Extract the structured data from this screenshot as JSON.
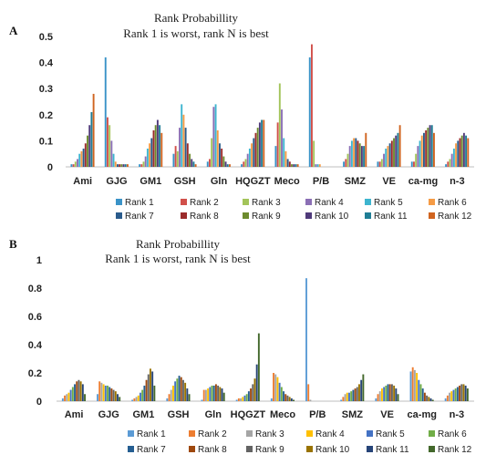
{
  "chart_data": [
    {
      "panel_label": "A",
      "type": "bar",
      "title": "Rank Probabillity",
      "subtitle": "Rank 1 is worst, rank N is best",
      "ylim": [
        0,
        0.5
      ],
      "yticks": [
        "0",
        "0.1",
        "0.2",
        "0.3",
        "0.4",
        "0.5"
      ],
      "grid": false,
      "legend_position": "bottom",
      "categories": [
        "Ami",
        "GJG",
        "GM1",
        "GSH",
        "Gln",
        "HQGZT",
        "Meco",
        "P/B",
        "SMZ",
        "VE",
        "ca-mg",
        "n-3"
      ],
      "series": [
        {
          "name": "Rank 1",
          "color": "#3A93C8",
          "values": [
            0.01,
            0.42,
            0.01,
            0.05,
            0.02,
            0.01,
            0.08,
            0.42,
            0.02,
            0.02,
            0.02,
            0.01
          ]
        },
        {
          "name": "Rank 2",
          "color": "#D1504A",
          "values": [
            0.01,
            0.19,
            0.01,
            0.08,
            0.03,
            0.02,
            0.17,
            0.47,
            0.03,
            0.02,
            0.02,
            0.02
          ]
        },
        {
          "name": "Rank 3",
          "color": "#A3C45A",
          "values": [
            0.02,
            0.16,
            0.02,
            0.06,
            0.11,
            0.03,
            0.32,
            0.1,
            0.05,
            0.03,
            0.05,
            0.03
          ]
        },
        {
          "name": "Rank 4",
          "color": "#8B6FB5",
          "values": [
            0.03,
            0.1,
            0.04,
            0.15,
            0.23,
            0.05,
            0.22,
            0.01,
            0.08,
            0.05,
            0.08,
            0.05
          ]
        },
        {
          "name": "Rank 5",
          "color": "#3DB5CF",
          "values": [
            0.05,
            0.05,
            0.07,
            0.24,
            0.24,
            0.07,
            0.11,
            0.01,
            0.1,
            0.07,
            0.1,
            0.07
          ]
        },
        {
          "name": "Rank 6",
          "color": "#F59B45",
          "values": [
            0.06,
            0.02,
            0.09,
            0.2,
            0.14,
            0.09,
            0.06,
            0.01,
            0.11,
            0.08,
            0.12,
            0.09
          ]
        },
        {
          "name": "Rank 7",
          "color": "#2A5B8C",
          "values": [
            0.07,
            0.01,
            0.11,
            0.15,
            0.09,
            0.11,
            0.03,
            0.0,
            0.11,
            0.09,
            0.13,
            0.1
          ]
        },
        {
          "name": "Rank 8",
          "color": "#9B2B2B",
          "values": [
            0.09,
            0.01,
            0.14,
            0.09,
            0.07,
            0.13,
            0.02,
            0.0,
            0.1,
            0.1,
            0.14,
            0.11
          ]
        },
        {
          "name": "Rank 9",
          "color": "#6D8B2E",
          "values": [
            0.12,
            0.01,
            0.16,
            0.05,
            0.04,
            0.15,
            0.01,
            0.0,
            0.09,
            0.11,
            0.15,
            0.12
          ]
        },
        {
          "name": "Rank 10",
          "color": "#4F3A7A",
          "values": [
            0.16,
            0.01,
            0.18,
            0.03,
            0.02,
            0.17,
            0.01,
            0.0,
            0.08,
            0.12,
            0.16,
            0.13
          ]
        },
        {
          "name": "Rank 11",
          "color": "#1F7D95",
          "values": [
            0.21,
            0.01,
            0.16,
            0.02,
            0.01,
            0.18,
            0.01,
            0.0,
            0.08,
            0.13,
            0.16,
            0.12
          ]
        },
        {
          "name": "Rank 12",
          "color": "#D06420",
          "values": [
            0.28,
            0.01,
            0.13,
            0.01,
            0.01,
            0.18,
            0.01,
            0.0,
            0.13,
            0.16,
            0.13,
            0.11
          ]
        }
      ]
    },
    {
      "panel_label": "B",
      "type": "bar",
      "title": "Rank Probabillity",
      "subtitle": "Rank 1 is worst, rank N is best",
      "ylim": [
        0,
        1
      ],
      "yticks": [
        "0",
        "0.2",
        "0.4",
        "0.6",
        "0.8",
        "1"
      ],
      "grid": false,
      "legend_position": "bottom",
      "categories": [
        "Ami",
        "GJG",
        "GM1",
        "GSH",
        "Gln",
        "HQGZT",
        "Meco",
        "P/B",
        "SMZ",
        "VE",
        "ca-mg",
        "n-3"
      ],
      "series": [
        {
          "name": "Rank 1",
          "color": "#5B9BD5",
          "values": [
            0.02,
            0.05,
            0.01,
            0.02,
            0.01,
            0.01,
            0.02,
            0.87,
            0.01,
            0.02,
            0.21,
            0.02
          ]
        },
        {
          "name": "Rank 2",
          "color": "#ED7D31",
          "values": [
            0.04,
            0.14,
            0.02,
            0.05,
            0.08,
            0.02,
            0.2,
            0.12,
            0.03,
            0.05,
            0.24,
            0.04
          ]
        },
        {
          "name": "Rank 3",
          "color": "#A5A5A5",
          "values": [
            0.05,
            0.13,
            0.03,
            0.08,
            0.08,
            0.02,
            0.19,
            0.01,
            0.05,
            0.07,
            0.22,
            0.06
          ]
        },
        {
          "name": "Rank 4",
          "color": "#FFC000",
          "values": [
            0.06,
            0.12,
            0.04,
            0.11,
            0.09,
            0.03,
            0.17,
            0.0,
            0.06,
            0.09,
            0.2,
            0.07
          ]
        },
        {
          "name": "Rank 5",
          "color": "#4472C4",
          "values": [
            0.08,
            0.11,
            0.06,
            0.14,
            0.1,
            0.04,
            0.13,
            0.0,
            0.06,
            0.1,
            0.15,
            0.08
          ]
        },
        {
          "name": "Rank 6",
          "color": "#70AD47",
          "values": [
            0.1,
            0.11,
            0.08,
            0.16,
            0.11,
            0.05,
            0.1,
            0.0,
            0.07,
            0.11,
            0.12,
            0.09
          ]
        },
        {
          "name": "Rank 7",
          "color": "#255E91",
          "values": [
            0.12,
            0.1,
            0.11,
            0.18,
            0.11,
            0.07,
            0.07,
            0.0,
            0.08,
            0.12,
            0.09,
            0.1
          ]
        },
        {
          "name": "Rank 8",
          "color": "#9E480E",
          "values": [
            0.14,
            0.09,
            0.15,
            0.17,
            0.12,
            0.09,
            0.05,
            0.0,
            0.09,
            0.12,
            0.06,
            0.11
          ]
        },
        {
          "name": "Rank 9",
          "color": "#636363",
          "values": [
            0.15,
            0.08,
            0.19,
            0.15,
            0.11,
            0.12,
            0.04,
            0.0,
            0.1,
            0.12,
            0.04,
            0.12
          ]
        },
        {
          "name": "Rank 10",
          "color": "#997300",
          "values": [
            0.14,
            0.07,
            0.23,
            0.13,
            0.1,
            0.16,
            0.03,
            0.0,
            0.12,
            0.11,
            0.03,
            0.12
          ]
        },
        {
          "name": "Rank 11",
          "color": "#264478",
          "values": [
            0.12,
            0.05,
            0.21,
            0.09,
            0.09,
            0.26,
            0.02,
            0.0,
            0.15,
            0.09,
            0.02,
            0.11
          ]
        },
        {
          "name": "Rank 12",
          "color": "#43682B",
          "values": [
            0.05,
            0.03,
            0.11,
            0.05,
            0.06,
            0.48,
            0.01,
            0.0,
            0.19,
            0.05,
            0.01,
            0.09
          ]
        }
      ]
    }
  ]
}
